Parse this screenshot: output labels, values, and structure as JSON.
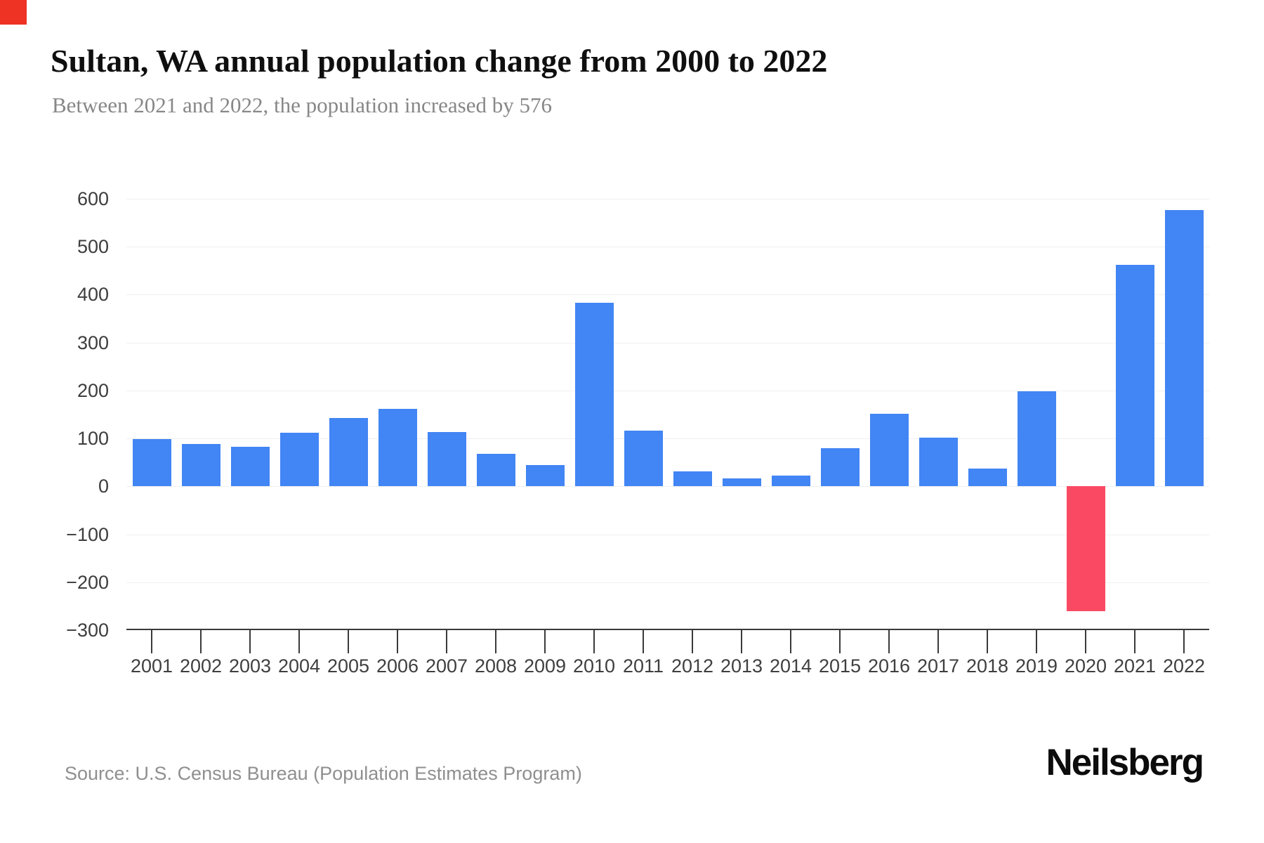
{
  "page": {
    "background": "#ffffff"
  },
  "corner_marker": {
    "color": "#ee3224"
  },
  "header": {
    "title": "Sultan, WA annual population change from 2000 to 2022",
    "subtitle": "Between 2021 and 2022, the population increased by 576"
  },
  "footer": {
    "source": "Source: U.S. Census Bureau (Population Estimates Program)",
    "brand": "Neilsberg"
  },
  "chart_data": {
    "type": "bar",
    "title": "Sultan, WA annual population change from 2000 to 2022",
    "subtitle": "Between 2021 and 2022, the population increased by 576",
    "xlabel": "",
    "ylabel": "",
    "categories": [
      "2001",
      "2002",
      "2003",
      "2004",
      "2005",
      "2006",
      "2007",
      "2008",
      "2009",
      "2010",
      "2011",
      "2012",
      "2013",
      "2014",
      "2015",
      "2016",
      "2017",
      "2018",
      "2019",
      "2020",
      "2021",
      "2022"
    ],
    "values": [
      99,
      88,
      82,
      112,
      143,
      162,
      113,
      68,
      44,
      383,
      116,
      31,
      17,
      22,
      80,
      151,
      102,
      37,
      198,
      -260,
      462,
      576
    ],
    "ylim": [
      -300,
      600
    ],
    "yticks": [
      {
        "label": "600",
        "value": 600
      },
      {
        "label": "500",
        "value": 500
      },
      {
        "label": "400",
        "value": 400
      },
      {
        "label": "300",
        "value": 300
      },
      {
        "label": "200",
        "value": 200
      },
      {
        "label": "100",
        "value": 100
      },
      {
        "label": "0",
        "value": 0
      },
      {
        "label": "−100",
        "value": -100
      },
      {
        "label": "−200",
        "value": -200
      },
      {
        "label": "−300",
        "value": -300
      }
    ],
    "grid": "horizontal-light",
    "legend": "none",
    "colors": {
      "positive_bar": "#4285F4",
      "negative_bar": "#FA4A63",
      "gridline": "#f0f0f0",
      "axis_line": "#3a3a3a",
      "tick_label": "#3d3d3d"
    }
  }
}
